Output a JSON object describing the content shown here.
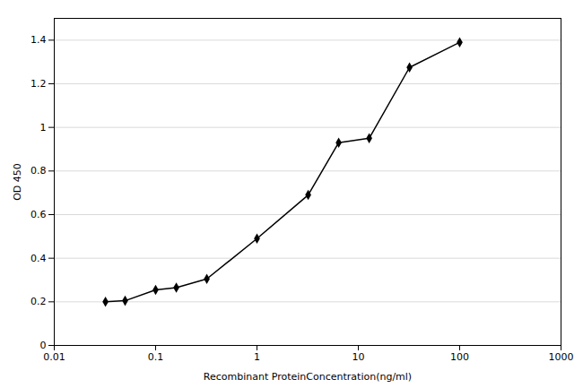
{
  "chart_data": {
    "type": "line",
    "xlabel": "Recombinant ProteinConcentration(ng/ml)",
    "ylabel": "OD 450",
    "x": [
      0.032,
      0.05,
      0.1,
      0.16,
      0.32,
      1.0,
      3.2,
      6.4,
      12.8,
      32,
      100
    ],
    "values": [
      0.2,
      0.205,
      0.255,
      0.265,
      0.305,
      0.49,
      0.69,
      0.93,
      0.95,
      1.275,
      1.39
    ],
    "log": "x",
    "xlim": [
      0.01,
      1000
    ],
    "xticks": [
      0.01,
      0.1,
      1,
      10,
      100,
      1000
    ],
    "ylim": [
      0,
      1.5
    ],
    "yticks": [
      0,
      0.2,
      0.4,
      0.6,
      0.8,
      1,
      1.2,
      1.4
    ],
    "grid": true,
    "marker": "diamond"
  }
}
